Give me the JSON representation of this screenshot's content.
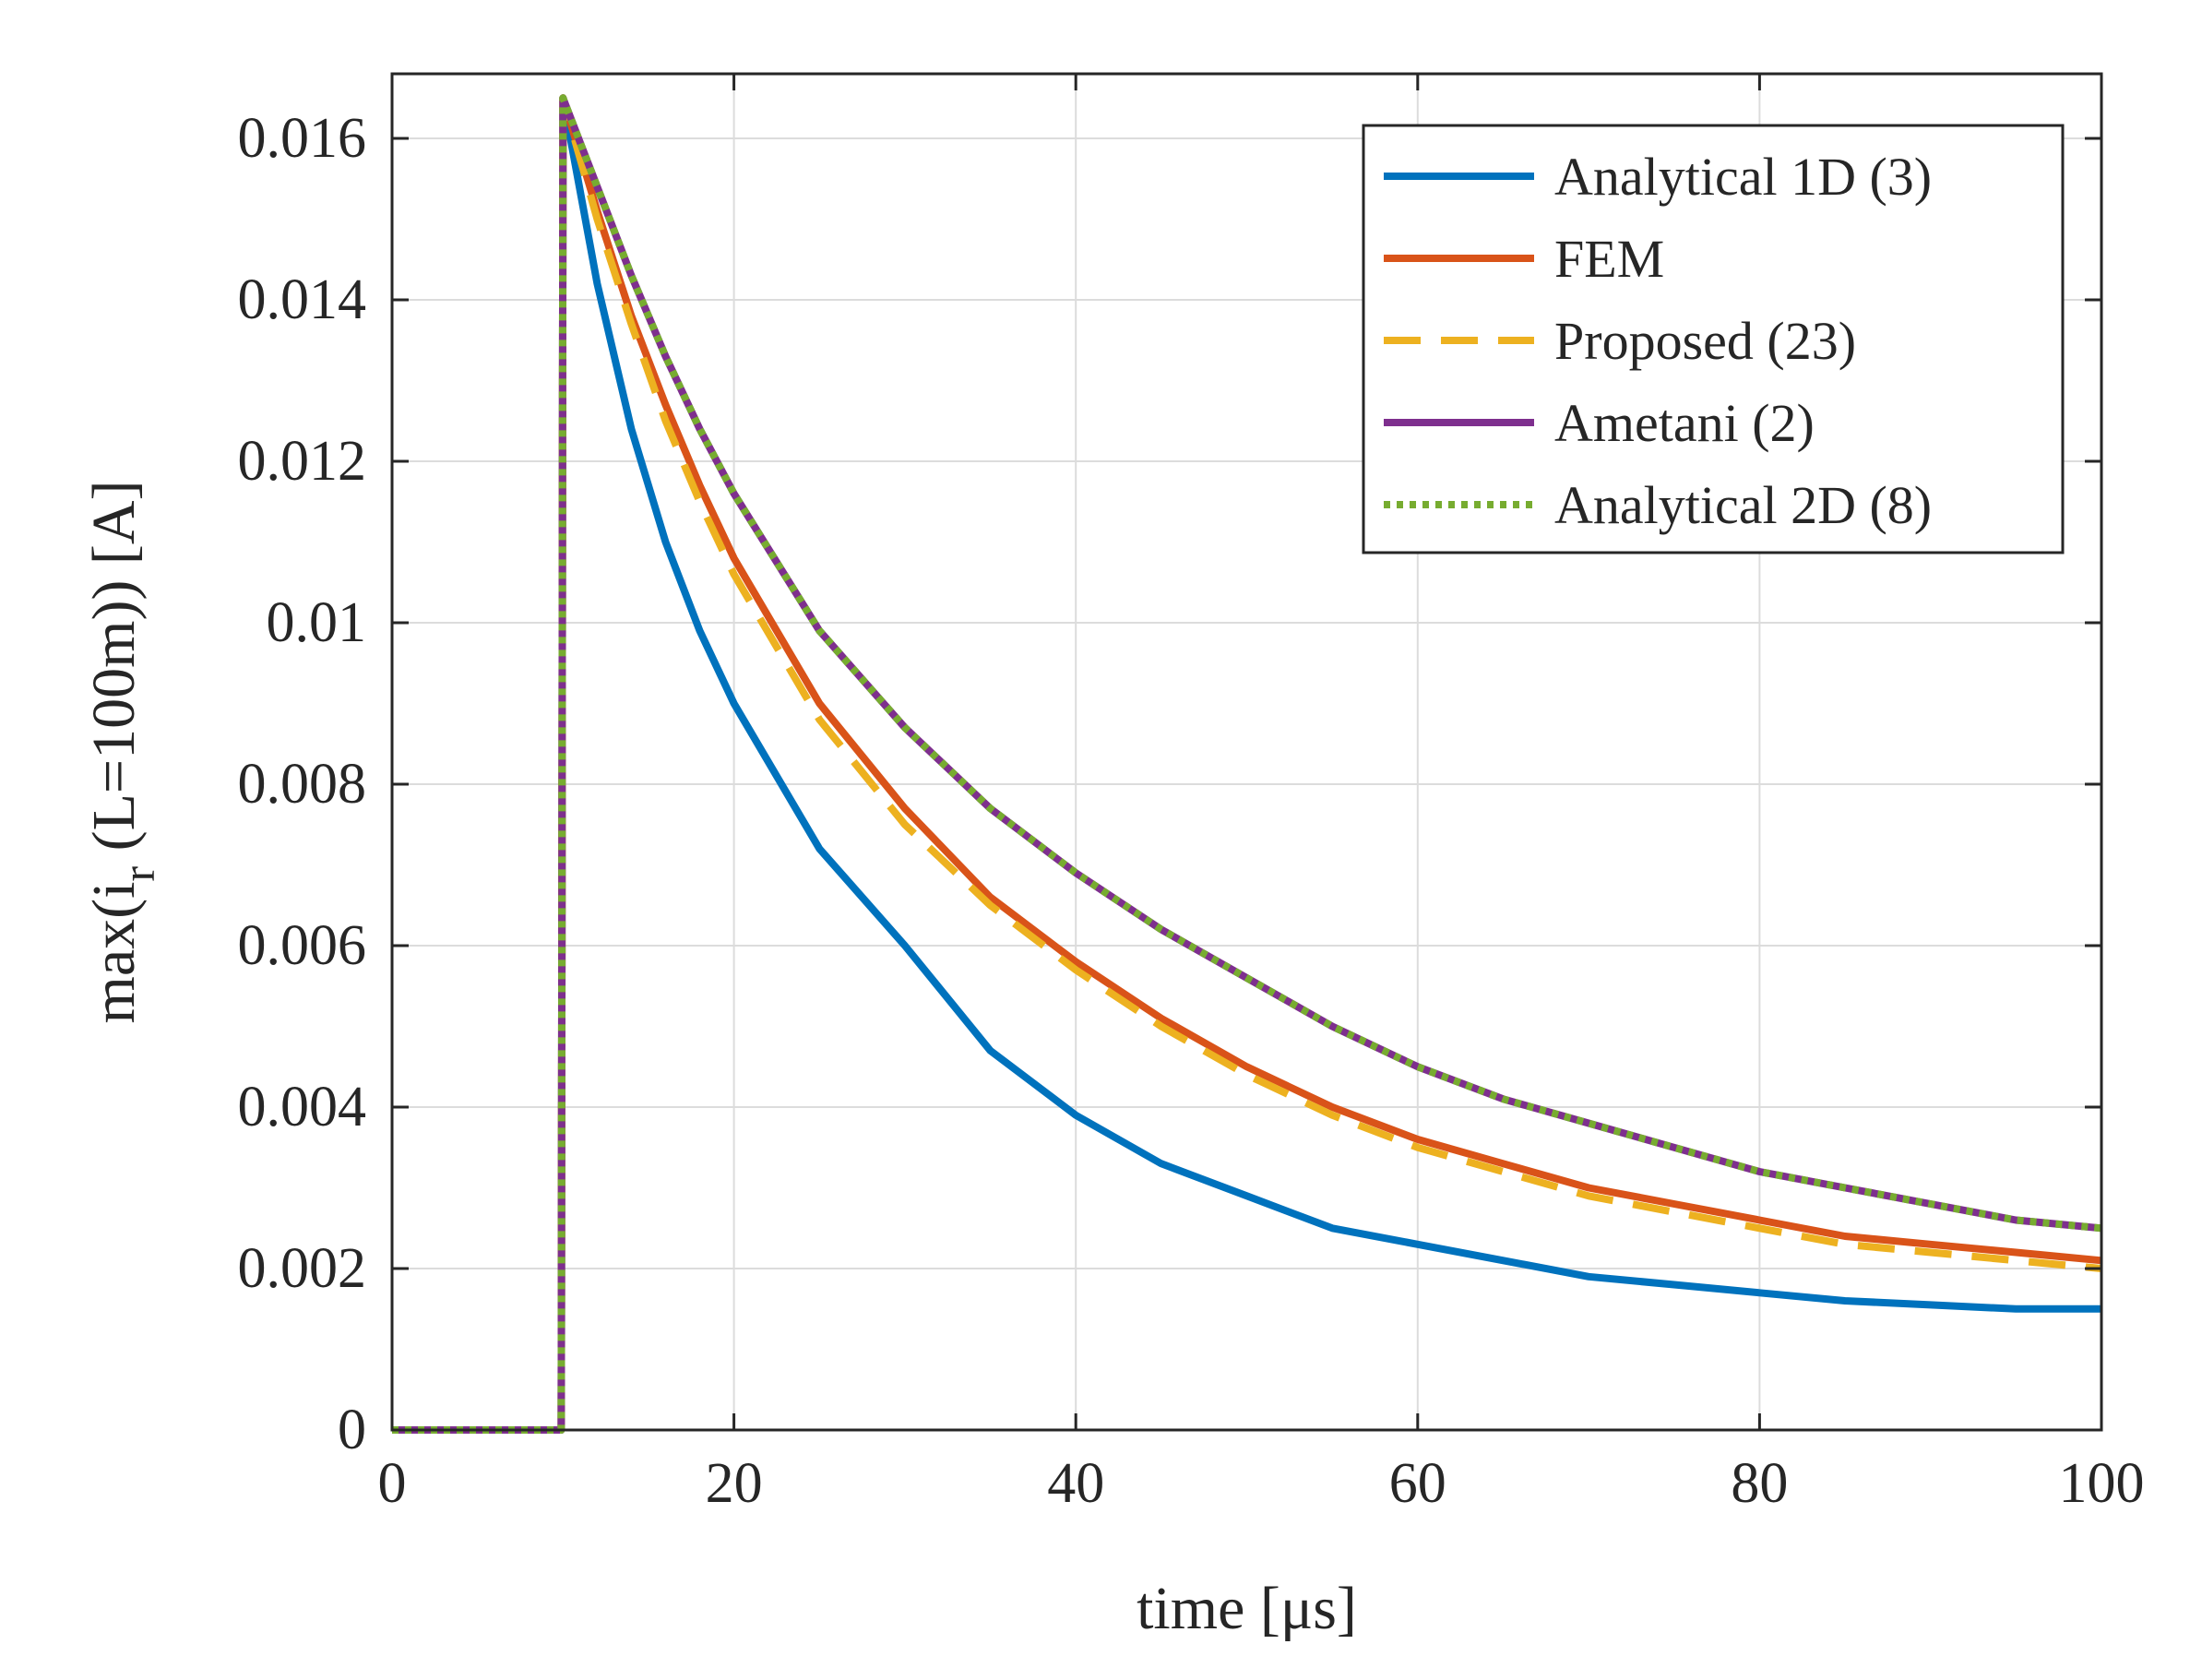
{
  "chart_data": {
    "type": "line",
    "title": "",
    "xlabel": "time [μs]",
    "ylabel": "max(i_r (L=100m)) [A]",
    "xlim": [
      0,
      100
    ],
    "ylim": [
      0,
      0.0168
    ],
    "xticks": [
      0,
      20,
      40,
      60,
      80,
      100
    ],
    "xtick_labels": [
      "0",
      "20",
      "40",
      "60",
      "80",
      "100"
    ],
    "yticks": [
      0,
      0.002,
      0.004,
      0.006,
      0.008,
      0.01,
      0.012,
      0.014,
      0.016
    ],
    "ytick_labels": [
      "0",
      "0.002",
      "0.004",
      "0.006",
      "0.008",
      "0.01",
      "0.012",
      "0.014",
      "0.016"
    ],
    "grid": true,
    "legend_position": "top-right",
    "x": [
      0,
      9.9,
      10,
      12,
      14,
      16,
      18,
      20,
      25,
      30,
      35,
      40,
      45,
      50,
      55,
      60,
      65,
      70,
      75,
      80,
      85,
      90,
      95,
      100
    ],
    "series": [
      {
        "name": "Analytical 1D (3)",
        "color": "#0072BD",
        "style": "solid",
        "values": [
          0,
          0,
          0.0165,
          0.0142,
          0.0124,
          0.011,
          0.0099,
          0.009,
          0.0072,
          0.006,
          0.0047,
          0.0039,
          0.0033,
          0.0029,
          0.0025,
          0.0023,
          0.0021,
          0.0019,
          0.0018,
          0.0017,
          0.0016,
          0.00155,
          0.0015,
          0.0015
        ]
      },
      {
        "name": "FEM",
        "color": "#D95319",
        "style": "solid",
        "values": [
          0,
          0,
          0.0165,
          0.0151,
          0.0138,
          0.0127,
          0.0117,
          0.0108,
          0.009,
          0.0077,
          0.0066,
          0.0058,
          0.0051,
          0.0045,
          0.004,
          0.0036,
          0.0033,
          0.003,
          0.0028,
          0.0026,
          0.0024,
          0.0023,
          0.0022,
          0.0021
        ]
      },
      {
        "name": "Proposed (23)",
        "color": "#EDB120",
        "style": "dashed",
        "values": [
          0,
          0,
          0.0165,
          0.015,
          0.0137,
          0.0125,
          0.0115,
          0.0106,
          0.0088,
          0.0075,
          0.0065,
          0.0057,
          0.005,
          0.0044,
          0.0039,
          0.0035,
          0.0032,
          0.0029,
          0.0027,
          0.0025,
          0.0023,
          0.0022,
          0.0021,
          0.002
        ]
      },
      {
        "name": "Ametani (2)",
        "color": "#7E2F8E",
        "style": "solid",
        "values": [
          0,
          0,
          0.0165,
          0.0154,
          0.0143,
          0.0133,
          0.0124,
          0.0116,
          0.0099,
          0.0087,
          0.0077,
          0.0069,
          0.0062,
          0.0056,
          0.005,
          0.0045,
          0.0041,
          0.0038,
          0.0035,
          0.0032,
          0.003,
          0.0028,
          0.0026,
          0.0025
        ]
      },
      {
        "name": "Analytical 2D (8)",
        "color": "#77AC30",
        "style": "dotted",
        "values": [
          0,
          0,
          0.0165,
          0.0154,
          0.0143,
          0.0133,
          0.0124,
          0.0116,
          0.0099,
          0.0087,
          0.0077,
          0.0069,
          0.0062,
          0.0056,
          0.005,
          0.0045,
          0.0041,
          0.0038,
          0.0035,
          0.0032,
          0.003,
          0.0028,
          0.0026,
          0.0025
        ]
      }
    ]
  }
}
